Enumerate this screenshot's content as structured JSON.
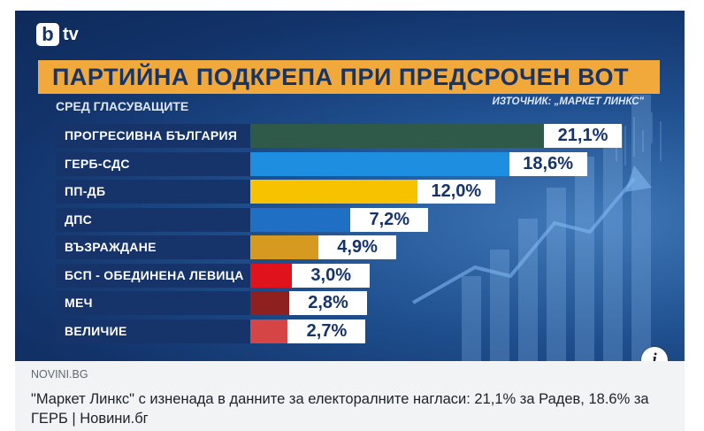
{
  "brand": {
    "logo_letter": "b",
    "logo_text": "tv"
  },
  "chart_data": {
    "type": "bar",
    "orientation": "horizontal",
    "title": "ПАРТИЙНА ПОДКРЕПА ПРИ ПРЕДСРОЧЕН ВОТ",
    "subtitle": "СРЕД ГЛАСУВАЩИТЕ",
    "source": "ИЗТОЧНИК: „МАРКЕТ ЛИНКС\"",
    "categories": [
      "ПРОГРЕСИВНА БЪЛГАРИЯ",
      "ГЕРБ-СДС",
      "ПП-ДБ",
      "ДПС",
      "ВЪЗРАЖДАНЕ",
      "БСП - ОБЕДИНЕНА ЛЕВИЦА",
      "МЕЧ",
      "ВЕЛИЧИЕ"
    ],
    "values": [
      21.1,
      18.6,
      12.0,
      7.2,
      4.9,
      3.0,
      2.8,
      2.7
    ],
    "value_labels": [
      "21,1%",
      "18,6%",
      "12,0%",
      "7,2%",
      "4,9%",
      "3,0%",
      "2,8%",
      "2,7%"
    ],
    "colors": [
      "#2f5a4a",
      "#1e8fe0",
      "#f7c300",
      "#1f6fc4",
      "#d59a1f",
      "#e0121b",
      "#8e2020",
      "#d64545"
    ],
    "unit": "%"
  },
  "link_preview": {
    "domain": "NOVINI.BG",
    "headline": "\"Маркет Линкс\" с изненада в данните за електоралните нагласи: 21,1% за Радев, 18.6% за ГЕРБ | Новини.бг",
    "info_icon": "info-icon",
    "info_label": "i"
  }
}
